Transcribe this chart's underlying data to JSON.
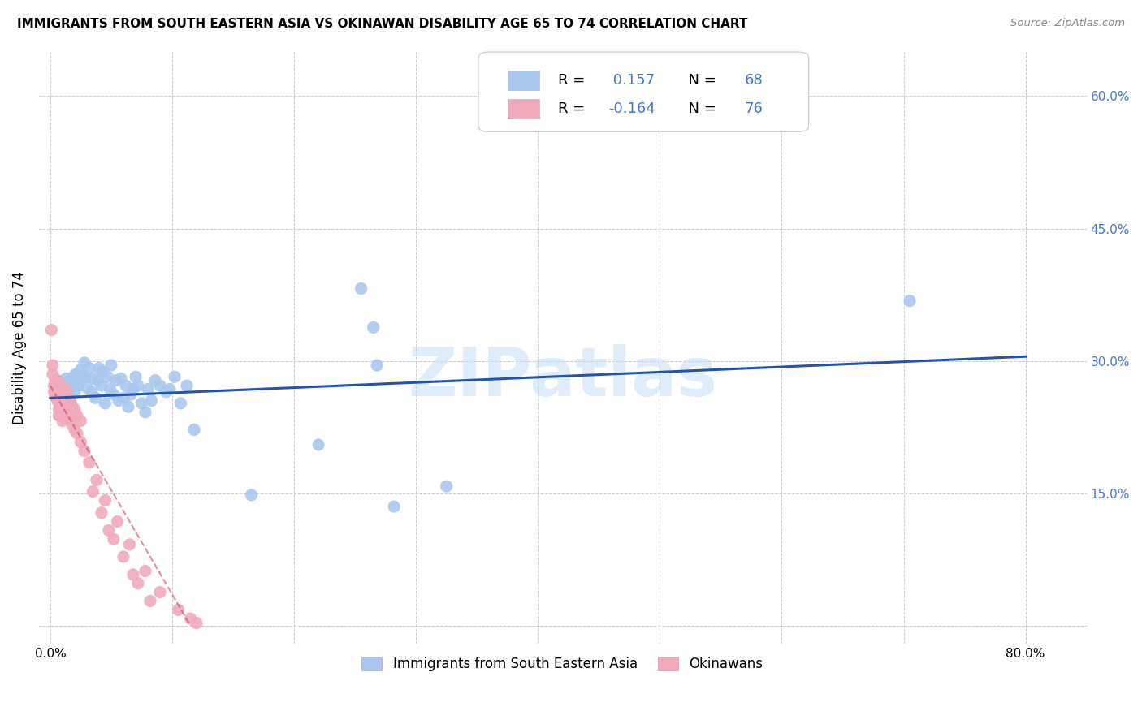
{
  "title": "IMMIGRANTS FROM SOUTH EASTERN ASIA VS OKINAWAN DISABILITY AGE 65 TO 74 CORRELATION CHART",
  "source": "Source: ZipAtlas.com",
  "ylabel_label": "Disability Age 65 to 74",
  "x_ticks": [
    0.0,
    0.1,
    0.2,
    0.3,
    0.4,
    0.5,
    0.6,
    0.7,
    0.8
  ],
  "x_tick_labels": [
    "0.0%",
    "",
    "",
    "",
    "",
    "",
    "",
    "",
    "80.0%"
  ],
  "y_ticks": [
    0.0,
    0.15,
    0.3,
    0.45,
    0.6
  ],
  "y_tick_labels": [
    "",
    "15.0%",
    "30.0%",
    "45.0%",
    "60.0%"
  ],
  "xlim": [
    -0.01,
    0.85
  ],
  "ylim": [
    -0.02,
    0.65
  ],
  "bg_color": "#ffffff",
  "grid_color": "#cccccc",
  "watermark": "ZIPatlas",
  "legend_R1": "R = ",
  "legend_V1": " 0.157",
  "legend_N1_label": "  N = ",
  "legend_N1_val": "68",
  "legend_R2": "R = ",
  "legend_V2": "-0.164",
  "legend_N2_label": "  N = ",
  "legend_N2_val": "76",
  "blue_color": "#aac8ee",
  "pink_color": "#f0aabb",
  "blue_line_color": "#2255aa",
  "pink_line_color": "#cc4466",
  "legend_text_color": "#4477cc",
  "label_color": "#4477cc",
  "blue_scatter": [
    [
      0.004,
      0.27
    ],
    [
      0.005,
      0.265
    ],
    [
      0.006,
      0.268
    ],
    [
      0.007,
      0.262
    ],
    [
      0.008,
      0.272
    ],
    [
      0.009,
      0.268
    ],
    [
      0.01,
      0.275
    ],
    [
      0.011,
      0.272
    ],
    [
      0.012,
      0.268
    ],
    [
      0.013,
      0.28
    ],
    [
      0.014,
      0.265
    ],
    [
      0.015,
      0.272
    ],
    [
      0.016,
      0.278
    ],
    [
      0.017,
      0.268
    ],
    [
      0.018,
      0.275
    ],
    [
      0.019,
      0.282
    ],
    [
      0.02,
      0.265
    ],
    [
      0.021,
      0.285
    ],
    [
      0.022,
      0.278
    ],
    [
      0.023,
      0.272
    ],
    [
      0.025,
      0.29
    ],
    [
      0.026,
      0.28
    ],
    [
      0.028,
      0.298
    ],
    [
      0.029,
      0.282
    ],
    [
      0.03,
      0.27
    ],
    [
      0.032,
      0.292
    ],
    [
      0.034,
      0.265
    ],
    [
      0.035,
      0.28
    ],
    [
      0.037,
      0.258
    ],
    [
      0.039,
      0.278
    ],
    [
      0.04,
      0.292
    ],
    [
      0.042,
      0.272
    ],
    [
      0.043,
      0.288
    ],
    [
      0.045,
      0.252
    ],
    [
      0.047,
      0.282
    ],
    [
      0.049,
      0.268
    ],
    [
      0.05,
      0.295
    ],
    [
      0.052,
      0.262
    ],
    [
      0.054,
      0.278
    ],
    [
      0.056,
      0.255
    ],
    [
      0.058,
      0.28
    ],
    [
      0.06,
      0.258
    ],
    [
      0.062,
      0.272
    ],
    [
      0.064,
      0.248
    ],
    [
      0.066,
      0.262
    ],
    [
      0.068,
      0.268
    ],
    [
      0.07,
      0.282
    ],
    [
      0.072,
      0.272
    ],
    [
      0.075,
      0.252
    ],
    [
      0.078,
      0.242
    ],
    [
      0.08,
      0.268
    ],
    [
      0.083,
      0.255
    ],
    [
      0.086,
      0.278
    ],
    [
      0.09,
      0.272
    ],
    [
      0.095,
      0.265
    ],
    [
      0.098,
      0.268
    ],
    [
      0.102,
      0.282
    ],
    [
      0.107,
      0.252
    ],
    [
      0.112,
      0.272
    ],
    [
      0.118,
      0.222
    ],
    [
      0.165,
      0.148
    ],
    [
      0.22,
      0.205
    ],
    [
      0.255,
      0.382
    ],
    [
      0.265,
      0.338
    ],
    [
      0.268,
      0.295
    ],
    [
      0.282,
      0.135
    ],
    [
      0.325,
      0.158
    ],
    [
      0.705,
      0.368
    ]
  ],
  "pink_scatter": [
    [
      0.001,
      0.335
    ],
    [
      0.002,
      0.285
    ],
    [
      0.002,
      0.295
    ],
    [
      0.003,
      0.272
    ],
    [
      0.003,
      0.265
    ],
    [
      0.004,
      0.278
    ],
    [
      0.004,
      0.268
    ],
    [
      0.004,
      0.26
    ],
    [
      0.005,
      0.272
    ],
    [
      0.005,
      0.265
    ],
    [
      0.005,
      0.258
    ],
    [
      0.006,
      0.278
    ],
    [
      0.006,
      0.27
    ],
    [
      0.006,
      0.262
    ],
    [
      0.006,
      0.255
    ],
    [
      0.007,
      0.272
    ],
    [
      0.007,
      0.265
    ],
    [
      0.007,
      0.26
    ],
    [
      0.007,
      0.252
    ],
    [
      0.007,
      0.245
    ],
    [
      0.007,
      0.238
    ],
    [
      0.008,
      0.268
    ],
    [
      0.008,
      0.258
    ],
    [
      0.008,
      0.248
    ],
    [
      0.008,
      0.238
    ],
    [
      0.009,
      0.265
    ],
    [
      0.009,
      0.255
    ],
    [
      0.009,
      0.242
    ],
    [
      0.01,
      0.27
    ],
    [
      0.01,
      0.258
    ],
    [
      0.01,
      0.245
    ],
    [
      0.01,
      0.232
    ],
    [
      0.011,
      0.265
    ],
    [
      0.011,
      0.252
    ],
    [
      0.011,
      0.238
    ],
    [
      0.012,
      0.268
    ],
    [
      0.012,
      0.255
    ],
    [
      0.012,
      0.24
    ],
    [
      0.013,
      0.265
    ],
    [
      0.013,
      0.25
    ],
    [
      0.013,
      0.235
    ],
    [
      0.014,
      0.262
    ],
    [
      0.014,
      0.245
    ],
    [
      0.015,
      0.258
    ],
    [
      0.015,
      0.242
    ],
    [
      0.016,
      0.255
    ],
    [
      0.016,
      0.24
    ],
    [
      0.017,
      0.252
    ],
    [
      0.017,
      0.235
    ],
    [
      0.018,
      0.248
    ],
    [
      0.018,
      0.228
    ],
    [
      0.02,
      0.245
    ],
    [
      0.02,
      0.222
    ],
    [
      0.022,
      0.238
    ],
    [
      0.022,
      0.218
    ],
    [
      0.025,
      0.232
    ],
    [
      0.025,
      0.208
    ],
    [
      0.028,
      0.198
    ],
    [
      0.032,
      0.185
    ],
    [
      0.038,
      0.165
    ],
    [
      0.045,
      0.142
    ],
    [
      0.055,
      0.118
    ],
    [
      0.065,
      0.092
    ],
    [
      0.078,
      0.062
    ],
    [
      0.09,
      0.038
    ],
    [
      0.105,
      0.018
    ],
    [
      0.115,
      0.008
    ],
    [
      0.12,
      0.003
    ],
    [
      0.048,
      0.108
    ],
    [
      0.035,
      0.152
    ],
    [
      0.042,
      0.128
    ],
    [
      0.06,
      0.078
    ],
    [
      0.072,
      0.048
    ],
    [
      0.082,
      0.028
    ],
    [
      0.052,
      0.098
    ],
    [
      0.068,
      0.058
    ]
  ],
  "blue_trend_x": [
    0.0,
    0.8
  ],
  "blue_trend_y": [
    0.258,
    0.305
  ],
  "pink_trend_x": [
    0.0,
    0.115
  ],
  "pink_trend_y": [
    0.272,
    0.0
  ],
  "legend1_label": "Immigrants from South Eastern Asia",
  "legend2_label": "Okinawans"
}
